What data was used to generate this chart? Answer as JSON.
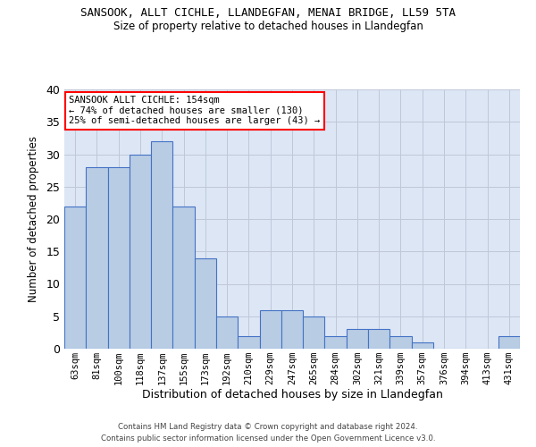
{
  "title1": "SANSOOK, ALLT CICHLE, LLANDEGFAN, MENAI BRIDGE, LL59 5TA",
  "title2": "Size of property relative to detached houses in Llandegfan",
  "xlabel": "Distribution of detached houses by size in Llandegfan",
  "ylabel": "Number of detached properties",
  "categories": [
    "63sqm",
    "81sqm",
    "100sqm",
    "118sqm",
    "137sqm",
    "155sqm",
    "173sqm",
    "192sqm",
    "210sqm",
    "229sqm",
    "247sqm",
    "265sqm",
    "284sqm",
    "302sqm",
    "321sqm",
    "339sqm",
    "357sqm",
    "376sqm",
    "394sqm",
    "413sqm",
    "431sqm"
  ],
  "values": [
    22,
    28,
    28,
    30,
    32,
    22,
    14,
    5,
    2,
    6,
    6,
    5,
    2,
    3,
    3,
    2,
    1,
    0,
    0,
    0,
    2
  ],
  "bar_color": "#b8cce4",
  "bar_edge_color": "#4472c4",
  "annotation_title": "SANSOOK ALLT CICHLE: 154sqm",
  "annotation_line1": "← 74% of detached houses are smaller (130)",
  "annotation_line2": "25% of semi-detached houses are larger (43) →",
  "footer1": "Contains HM Land Registry data © Crown copyright and database right 2024.",
  "footer2": "Contains public sector information licensed under the Open Government Licence v3.0.",
  "ylim": [
    0,
    40
  ],
  "yticks": [
    0,
    5,
    10,
    15,
    20,
    25,
    30,
    35,
    40
  ],
  "background_color": "#ffffff",
  "grid_color": "#c0c8d8",
  "ax_bg_color": "#dce6f5"
}
